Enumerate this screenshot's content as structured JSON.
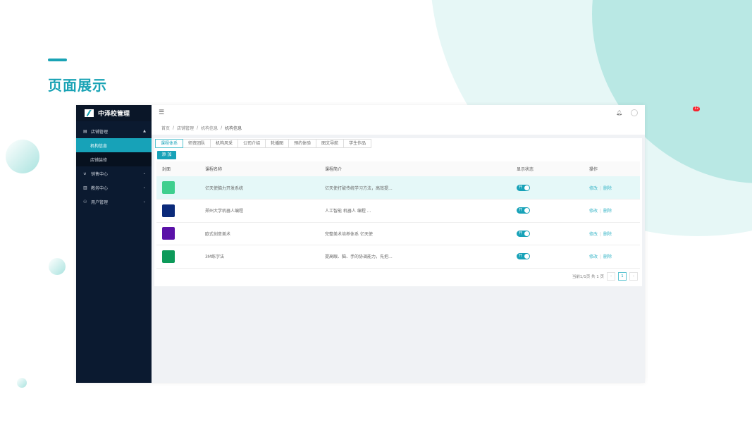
{
  "slide": {
    "title": "页面展示"
  },
  "app": {
    "name": "中泽校管理"
  },
  "sidebar": {
    "items": [
      {
        "label": "店铺管理",
        "icon": "store-icon",
        "expanded": true,
        "children": [
          {
            "label": "机构信息",
            "active": true
          },
          {
            "label": "店铺装修"
          }
        ]
      },
      {
        "label": "销售中心",
        "icon": "cart-icon"
      },
      {
        "label": "教务中心",
        "icon": "book-icon"
      },
      {
        "label": "用户管理",
        "icon": "user-icon"
      }
    ]
  },
  "header": {
    "notification_count": "12"
  },
  "breadcrumb": [
    "首页",
    "店铺管理",
    "机构信息",
    "机构信息"
  ],
  "tabs": [
    "课程体系",
    "师资团队",
    "机构风采",
    "公司介绍",
    "轮播图",
    "预约体验",
    "图文导航",
    "学生作品"
  ],
  "add_label": "添 加",
  "table": {
    "columns": [
      "封面",
      "课程名称",
      "课程简介",
      "显示状态",
      "操作"
    ],
    "rows": [
      {
        "name": "亿天使脑力开发系统",
        "intro": "亿天使打破传统学习方法，高效提...",
        "status": "开",
        "cover_color": "#3fcf8e"
      },
      {
        "name": "郑州大学机器人编程",
        "intro": "人工智能 机器人 编程 ...",
        "status": "开",
        "cover_color": "#0b2a7a"
      },
      {
        "name": "欧式创意美术",
        "intro": "完整美术培养体系 亿天使",
        "status": "开",
        "cover_color": "#5a11a8"
      },
      {
        "name": "3M练字法",
        "intro": "提高眼、脑、手的协调能力，先把...",
        "status": "开",
        "cover_color": "#0d9a5a"
      }
    ],
    "edit_label": "修改",
    "delete_label": "删除"
  },
  "pagination": {
    "summary": "当前1/1页 共 1 页",
    "current": "1",
    "prev": "‹",
    "next": "›"
  },
  "colors": {
    "accent": "#17a2b8",
    "sidebar": "#0b1a30"
  }
}
